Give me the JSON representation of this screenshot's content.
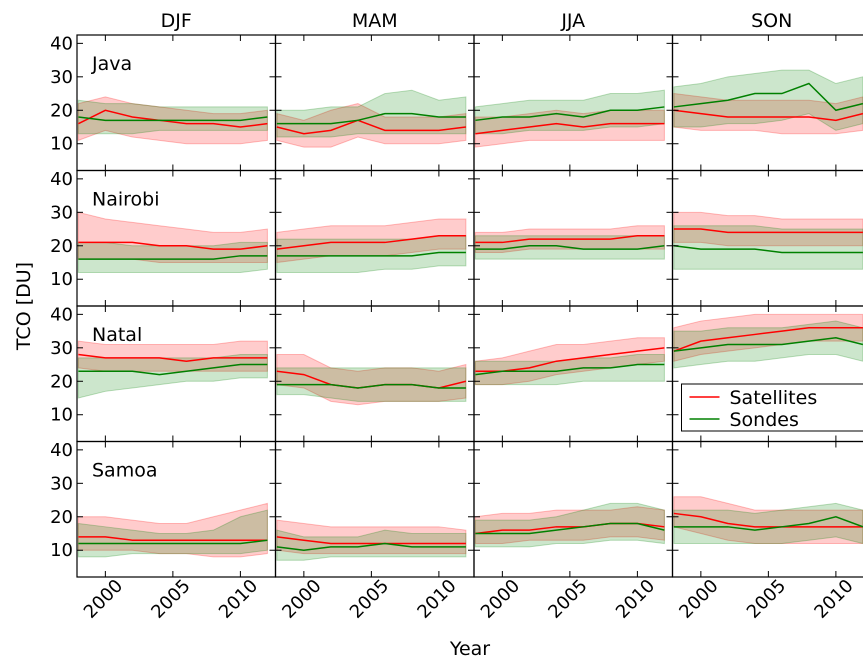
{
  "chart_data": {
    "type": "line",
    "seasons": [
      "DJF",
      "MAM",
      "JJA",
      "SON"
    ],
    "stations": [
      "Java",
      "Nairobi",
      "Natal",
      "Samoa"
    ],
    "xlabel": "Year",
    "ylabel": "TCO [DU]",
    "x": [
      1998,
      2000,
      2002,
      2004,
      2006,
      2008,
      2010,
      2012
    ],
    "xlim": [
      1997.9,
      2012.6
    ],
    "xticks": [
      2000,
      2005,
      2010
    ],
    "ylim": [
      2,
      42.5
    ],
    "yticks": [
      10,
      20,
      30,
      40
    ],
    "legend": "center right",
    "series": [
      {
        "name": "Satellites",
        "color": "#ff0000"
      },
      {
        "name": "Sondes",
        "color": "#008000"
      }
    ],
    "panels": [
      {
        "series": [
          {
            "values": [
              16,
              20,
              18,
              17,
              16,
              16,
              15,
              16
            ],
            "lower": [
              11,
              14,
              12,
              11,
              10,
              10,
              10,
              11
            ],
            "upper": [
              22,
              24,
              22,
              21,
              20,
              19,
              19,
              20
            ]
          },
          {
            "values": [
              18,
              17,
              17,
              17,
              17,
              17,
              17,
              18
            ],
            "lower": [
              13,
              13,
              13,
              14,
              14,
              14,
              14,
              14
            ],
            "upper": [
              23,
              22,
              22,
              21,
              21,
              21,
              21,
              21
            ]
          }
        ]
      },
      {
        "series": [
          {
            "values": [
              15,
              13,
              14,
              17,
              14,
              14,
              14,
              15
            ],
            "lower": [
              11,
              9,
              9,
              12,
              10,
              10,
              10,
              11
            ],
            "upper": [
              19,
              17,
              20,
              22,
              18,
              18,
              18,
              19
            ]
          },
          {
            "values": [
              16,
              16,
              16,
              17,
              19,
              19,
              18,
              18
            ],
            "lower": [
              12,
              12,
              12,
              13,
              13,
              13,
              13,
              13
            ],
            "upper": [
              20,
              20,
              21,
              21,
              25,
              26,
              23,
              24
            ]
          }
        ]
      },
      {
        "series": [
          {
            "values": [
              13,
              14,
              15,
              16,
              15,
              16,
              16,
              16
            ],
            "lower": [
              9,
              10,
              11,
              11,
              11,
              11,
              11,
              11
            ],
            "upper": [
              18,
              18,
              19,
              20,
              19,
              20,
              20,
              20
            ]
          },
          {
            "values": [
              17,
              18,
              18,
              19,
              18,
              20,
              20,
              21
            ],
            "lower": [
              13,
              13,
              14,
              14,
              14,
              15,
              15,
              16
            ],
            "upper": [
              21,
              22,
              23,
              23,
              23,
              25,
              25,
              26
            ]
          }
        ]
      },
      {
        "series": [
          {
            "values": [
              20,
              19,
              18,
              18,
              18,
              18,
              17,
              19
            ],
            "lower": [
              15,
              14,
              14,
              14,
              13,
              13,
              13,
              14
            ],
            "upper": [
              25,
              24,
              23,
              23,
              23,
              23,
              22,
              24
            ]
          },
          {
            "values": [
              21,
              22,
              23,
              25,
              25,
              28,
              20,
              22
            ],
            "lower": [
              15,
              15,
              16,
              16,
              17,
              19,
              14,
              16
            ],
            "upper": [
              27,
              28,
              30,
              31,
              32,
              32,
              28,
              30
            ]
          }
        ]
      },
      {
        "series": [
          {
            "values": [
              21,
              21,
              21,
              20,
              20,
              19,
              19,
              20
            ],
            "lower": [
              16,
              16,
              16,
              15,
              15,
              15,
              15,
              15
            ],
            "upper": [
              30,
              28,
              27,
              26,
              25,
              24,
              24,
              25
            ]
          },
          {
            "values": [
              16,
              16,
              16,
              16,
              16,
              16,
              17,
              17
            ],
            "lower": [
              12,
              12,
              12,
              12,
              12,
              12,
              12,
              13
            ],
            "upper": [
              21,
              21,
              20,
              20,
              20,
              20,
              21,
              21
            ]
          }
        ]
      },
      {
        "series": [
          {
            "values": [
              19,
              20,
              21,
              21,
              21,
              22,
              23,
              23
            ],
            "lower": [
              15,
              16,
              17,
              17,
              17,
              18,
              19,
              19
            ],
            "upper": [
              24,
              25,
              26,
              26,
              26,
              27,
              28,
              28
            ]
          },
          {
            "values": [
              17,
              17,
              17,
              17,
              17,
              17,
              18,
              18
            ],
            "lower": [
              12,
              12,
              12,
              12,
              13,
              13,
              14,
              14
            ],
            "upper": [
              22,
              22,
              22,
              22,
              22,
              22,
              23,
              23
            ]
          }
        ]
      },
      {
        "series": [
          {
            "values": [
              21,
              21,
              22,
              22,
              22,
              22,
              23,
              23
            ],
            "lower": [
              18,
              18,
              19,
              19,
              19,
              19,
              19,
              19
            ],
            "upper": [
              24,
              24,
              25,
              25,
              25,
              25,
              26,
              26
            ]
          },
          {
            "values": [
              19,
              19,
              20,
              20,
              19,
              19,
              19,
              20
            ],
            "lower": [
              16,
              16,
              16,
              16,
              16,
              16,
              16,
              16
            ],
            "upper": [
              23,
              23,
              23,
              23,
              23,
              23,
              23,
              23
            ]
          }
        ]
      },
      {
        "series": [
          {
            "values": [
              25,
              25,
              24,
              24,
              24,
              24,
              24,
              24
            ],
            "lower": [
              21,
              21,
              20,
              20,
              20,
              20,
              20,
              20
            ],
            "upper": [
              30,
              30,
              29,
              29,
              28,
              28,
              28,
              28
            ]
          },
          {
            "values": [
              20,
              19,
              19,
              19,
              18,
              18,
              18,
              18
            ],
            "lower": [
              13,
              13,
              13,
              13,
              13,
              13,
              13,
              13
            ],
            "upper": [
              26,
              26,
              26,
              26,
              25,
              25,
              25,
              25
            ]
          }
        ]
      },
      {
        "series": [
          {
            "values": [
              28,
              27,
              27,
              27,
              26,
              27,
              27,
              27
            ],
            "lower": [
              24,
              23,
              23,
              23,
              23,
              23,
              23,
              23
            ],
            "upper": [
              32,
              31,
              31,
              31,
              31,
              31,
              32,
              32
            ]
          },
          {
            "values": [
              23,
              23,
              23,
              22,
              23,
              24,
              25,
              25
            ],
            "lower": [
              15,
              17,
              18,
              19,
              20,
              20,
              21,
              21
            ],
            "upper": [
              27,
              27,
              27,
              27,
              27,
              27,
              28,
              28
            ]
          }
        ]
      },
      {
        "series": [
          {
            "values": [
              23,
              22,
              19,
              18,
              19,
              19,
              18,
              20
            ],
            "lower": [
              19,
              18,
              14,
              13,
              14,
              14,
              14,
              15
            ],
            "upper": [
              28,
              28,
              24,
              23,
              24,
              24,
              23,
              25
            ]
          },
          {
            "values": [
              19,
              19,
              19,
              18,
              19,
              19,
              18,
              18
            ],
            "lower": [
              16,
              16,
              15,
              14,
              14,
              14,
              14,
              14
            ],
            "upper": [
              24,
              24,
              24,
              24,
              24,
              24,
              24,
              24
            ]
          }
        ]
      },
      {
        "series": [
          {
            "values": [
              23,
              23,
              24,
              26,
              27,
              28,
              29,
              30
            ],
            "lower": [
              19,
              19,
              20,
              22,
              23,
              24,
              25,
              26
            ],
            "upper": [
              26,
              27,
              29,
              31,
              31,
              32,
              33,
              33
            ]
          },
          {
            "values": [
              22,
              23,
              23,
              23,
              24,
              24,
              25,
              25
            ],
            "lower": [
              19,
              19,
              19,
              19,
              20,
              20,
              20,
              20
            ],
            "upper": [
              26,
              26,
              26,
              26,
              27,
              27,
              28,
              28
            ]
          }
        ]
      },
      {
        "series": [
          {
            "values": [
              29,
              32,
              33,
              34,
              35,
              36,
              36,
              36
            ],
            "lower": [
              26,
              28,
              29,
              30,
              31,
              32,
              32,
              32
            ],
            "upper": [
              36,
              38,
              39,
              40,
              40,
              40,
              40,
              40
            ]
          },
          {
            "values": [
              29,
              30,
              31,
              31,
              31,
              32,
              33,
              31
            ],
            "lower": [
              24,
              25,
              26,
              26,
              27,
              28,
              28,
              26
            ],
            "upper": [
              35,
              35,
              36,
              36,
              36,
              37,
              38,
              36
            ]
          }
        ]
      },
      {
        "series": [
          {
            "values": [
              14,
              14,
              13,
              13,
              13,
              13,
              13,
              13
            ],
            "lower": [
              10,
              10,
              10,
              9,
              9,
              8,
              8,
              9
            ],
            "upper": [
              20,
              20,
              19,
              18,
              18,
              20,
              22,
              24
            ]
          },
          {
            "values": [
              12,
              12,
              12,
              12,
              12,
              12,
              12,
              13
            ],
            "lower": [
              8,
              8,
              9,
              9,
              9,
              9,
              9,
              10
            ],
            "upper": [
              18,
              17,
              16,
              15,
              15,
              16,
              20,
              22
            ]
          }
        ]
      },
      {
        "series": [
          {
            "values": [
              14,
              13,
              12,
              12,
              12,
              12,
              12,
              12
            ],
            "lower": [
              10,
              9,
              9,
              9,
              9,
              9,
              9,
              9
            ],
            "upper": [
              19,
              18,
              17,
              17,
              17,
              17,
              17,
              16
            ]
          },
          {
            "values": [
              11,
              10,
              11,
              11,
              12,
              11,
              11,
              11
            ],
            "lower": [
              7,
              7,
              8,
              8,
              8,
              8,
              8,
              8
            ],
            "upper": [
              16,
              14,
              14,
              14,
              16,
              15,
              15,
              15
            ]
          }
        ]
      },
      {
        "series": [
          {
            "values": [
              15,
              16,
              16,
              17,
              17,
              18,
              18,
              17
            ],
            "lower": [
              12,
              12,
              13,
              13,
              13,
              14,
              14,
              13
            ],
            "upper": [
              20,
              21,
              21,
              22,
              22,
              22,
              23,
              22
            ]
          },
          {
            "values": [
              15,
              15,
              15,
              16,
              17,
              18,
              18,
              16
            ],
            "lower": [
              11,
              11,
              11,
              12,
              12,
              13,
              13,
              12
            ],
            "upper": [
              19,
              19,
              19,
              20,
              22,
              24,
              24,
              22
            ]
          }
        ]
      },
      {
        "series": [
          {
            "values": [
              21,
              20,
              18,
              17,
              17,
              17,
              17,
              17
            ],
            "lower": [
              17,
              15,
              13,
              12,
              12,
              12,
              12,
              12
            ],
            "upper": [
              26,
              26,
              24,
              22,
              22,
              22,
              22,
              22
            ]
          },
          {
            "values": [
              17,
              17,
              17,
              16,
              17,
              18,
              20,
              17
            ],
            "lower": [
              12,
              12,
              12,
              12,
              12,
              13,
              14,
              12
            ],
            "upper": [
              22,
              22,
              22,
              21,
              22,
              23,
              24,
              22
            ]
          }
        ]
      }
    ]
  }
}
